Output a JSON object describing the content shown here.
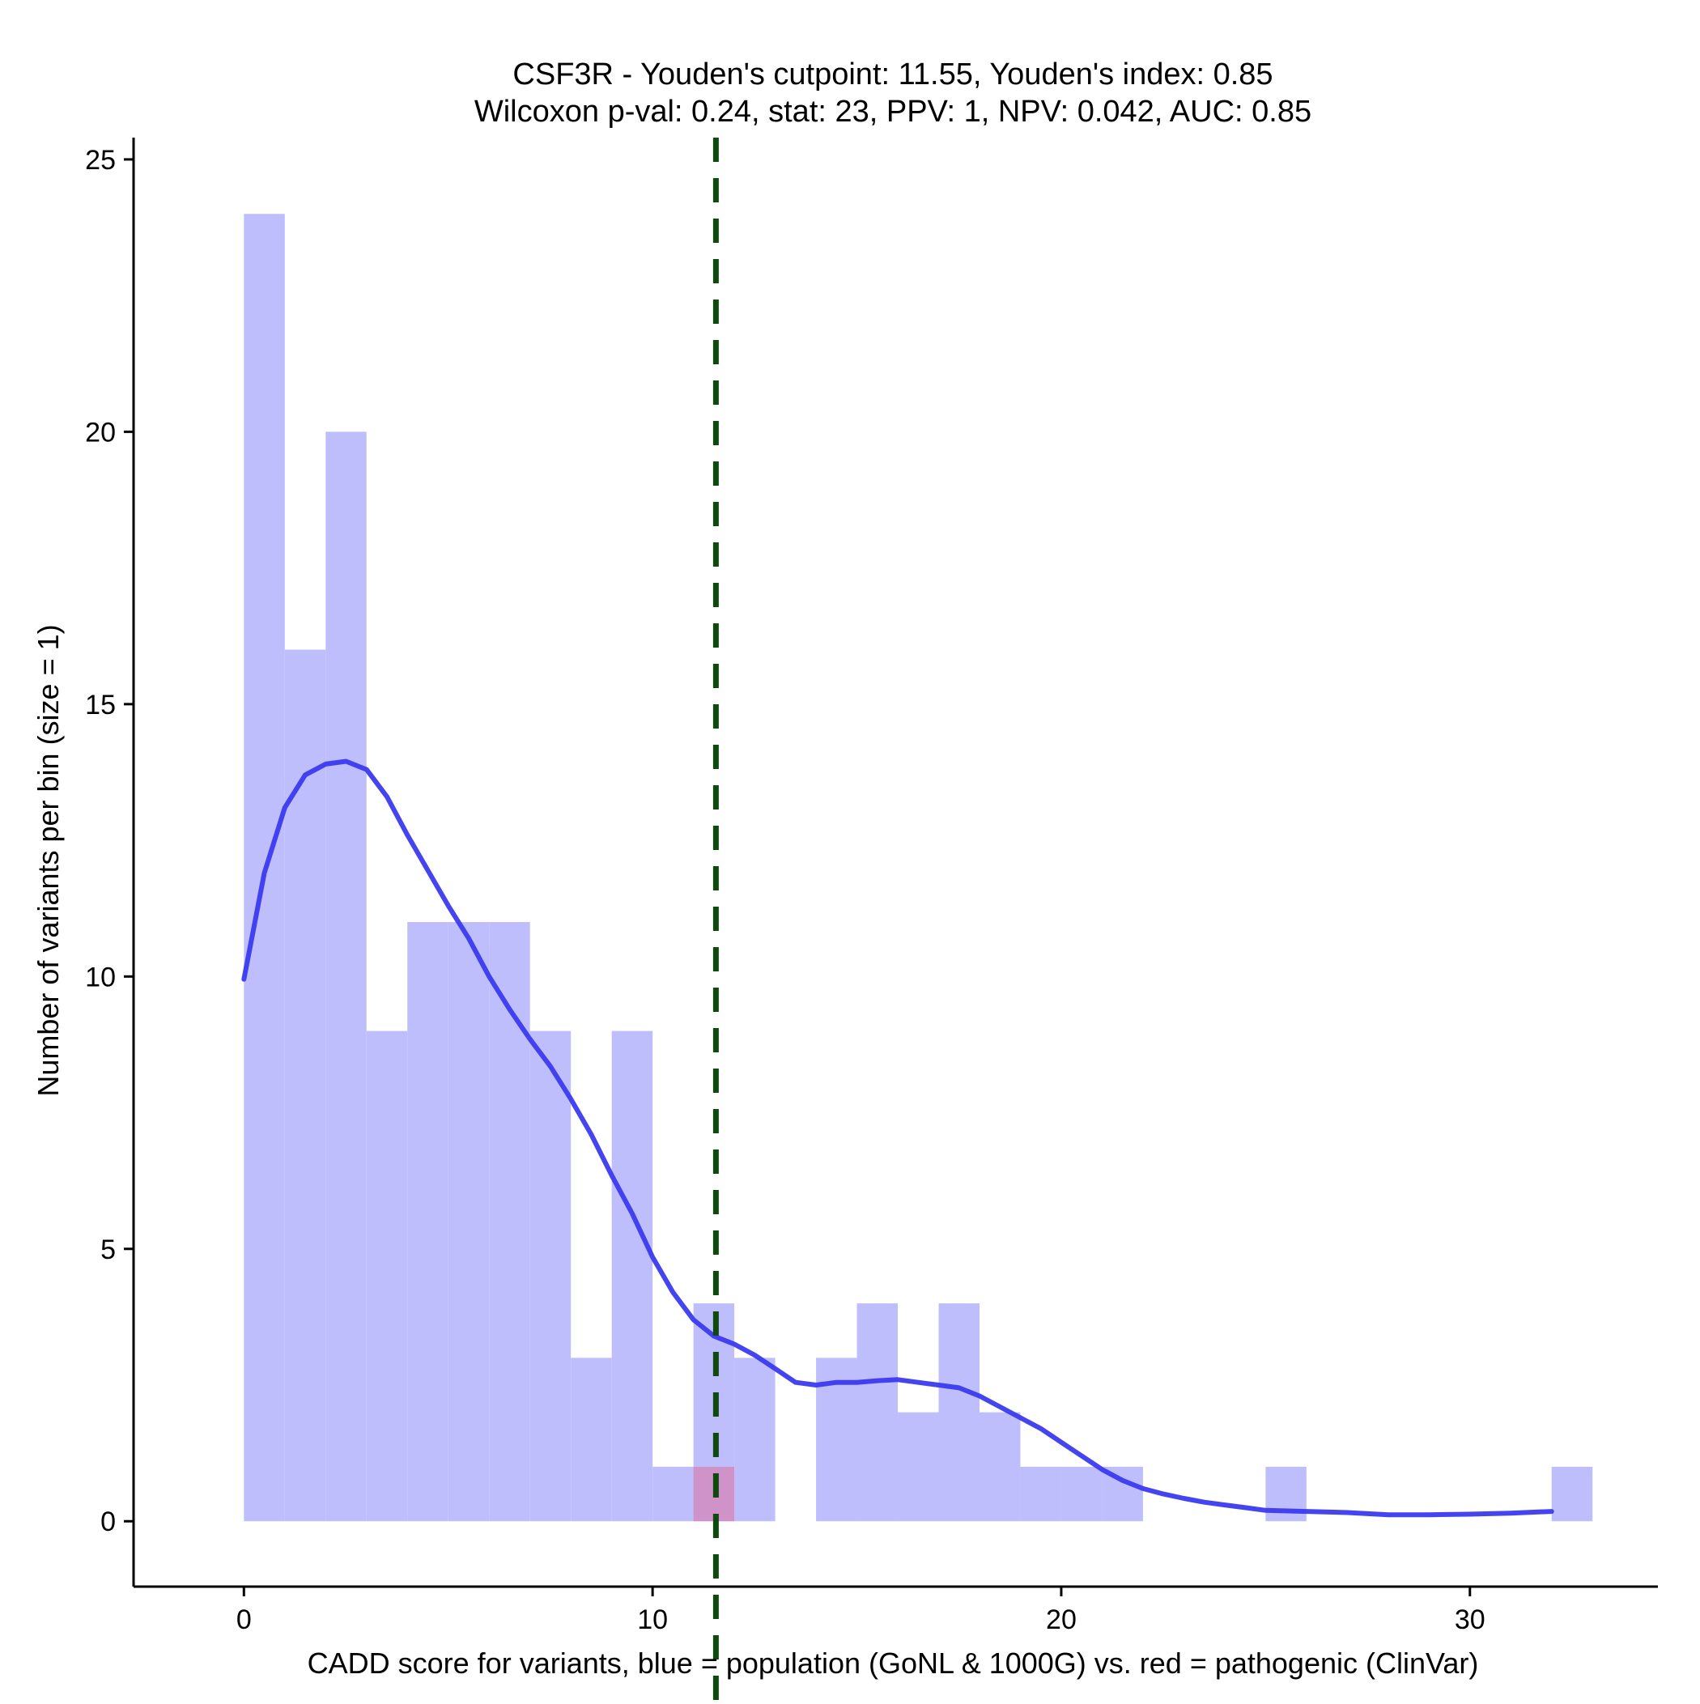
{
  "chart_data": {
    "type": "histogram",
    "title_line1": "CSF3R - Youden's cutpoint: 11.55, Youden's index: 0.85",
    "title_line2": "Wilcoxon p-val: 0.24, stat: 23, PPV: 1, NPV: 0.042, AUC: 0.85",
    "xlabel": "CADD score for variants, blue = population (GoNL & 1000G) vs. red = pathogenic (ClinVar)",
    "ylabel": "Number of variants per bin (size = 1)",
    "xlim": [
      -2.7,
      34.6
    ],
    "ylim": [
      -1.2,
      25.4
    ],
    "x_ticks": [
      0,
      10,
      20,
      30
    ],
    "y_ticks": [
      0,
      5,
      10,
      15,
      20,
      25
    ],
    "bin_size": 1,
    "cutpoint": 11.55,
    "colors": {
      "population": "#bebefc",
      "pathogenic": "#d48cbf",
      "density": "#3a3af0",
      "cutpoint": "#0e4a0e",
      "axis": "#000000"
    },
    "series": [
      {
        "name": "population",
        "bins": [
          {
            "x0": 0,
            "count": 24
          },
          {
            "x0": 1,
            "count": 16
          },
          {
            "x0": 2,
            "count": 20
          },
          {
            "x0": 3,
            "count": 9
          },
          {
            "x0": 4,
            "count": 11
          },
          {
            "x0": 5,
            "count": 11
          },
          {
            "x0": 6,
            "count": 11
          },
          {
            "x0": 7,
            "count": 9
          },
          {
            "x0": 8,
            "count": 3
          },
          {
            "x0": 9,
            "count": 9
          },
          {
            "x0": 10,
            "count": 1
          },
          {
            "x0": 11,
            "count": 4
          },
          {
            "x0": 12,
            "count": 3
          },
          {
            "x0": 13,
            "count": 0
          },
          {
            "x0": 14,
            "count": 3
          },
          {
            "x0": 15,
            "count": 4
          },
          {
            "x0": 16,
            "count": 2
          },
          {
            "x0": 17,
            "count": 4
          },
          {
            "x0": 18,
            "count": 2
          },
          {
            "x0": 19,
            "count": 1
          },
          {
            "x0": 20,
            "count": 1
          },
          {
            "x0": 21,
            "count": 1
          },
          {
            "x0": 25,
            "count": 1
          },
          {
            "x0": 32,
            "count": 1
          }
        ]
      },
      {
        "name": "pathogenic",
        "bins": [
          {
            "x0": 11,
            "count": 1
          }
        ]
      }
    ],
    "density_curve": {
      "name": "population density (scaled)",
      "points": [
        [
          0.0,
          9.95
        ],
        [
          0.5,
          11.9
        ],
        [
          1.0,
          13.1
        ],
        [
          1.5,
          13.7
        ],
        [
          2.0,
          13.9
        ],
        [
          2.5,
          13.95
        ],
        [
          3.0,
          13.8
        ],
        [
          3.5,
          13.3
        ],
        [
          4.0,
          12.6
        ],
        [
          4.5,
          11.95
        ],
        [
          5.0,
          11.3
        ],
        [
          5.5,
          10.7
        ],
        [
          6.0,
          10.0
        ],
        [
          6.5,
          9.4
        ],
        [
          7.0,
          8.85
        ],
        [
          7.5,
          8.35
        ],
        [
          8.0,
          7.75
        ],
        [
          8.5,
          7.1
        ],
        [
          9.0,
          6.35
        ],
        [
          9.5,
          5.65
        ],
        [
          10.0,
          4.85
        ],
        [
          10.5,
          4.2
        ],
        [
          11.0,
          3.7
        ],
        [
          11.5,
          3.4
        ],
        [
          12.0,
          3.25
        ],
        [
          12.5,
          3.05
        ],
        [
          13.0,
          2.8
        ],
        [
          13.5,
          2.55
        ],
        [
          14.0,
          2.5
        ],
        [
          14.5,
          2.55
        ],
        [
          15.0,
          2.55
        ],
        [
          15.5,
          2.58
        ],
        [
          16.0,
          2.6
        ],
        [
          16.5,
          2.55
        ],
        [
          17.0,
          2.5
        ],
        [
          17.5,
          2.45
        ],
        [
          18.0,
          2.3
        ],
        [
          18.5,
          2.1
        ],
        [
          19.0,
          1.9
        ],
        [
          19.5,
          1.7
        ],
        [
          20.0,
          1.45
        ],
        [
          20.5,
          1.2
        ],
        [
          21.0,
          0.95
        ],
        [
          21.5,
          0.75
        ],
        [
          22.0,
          0.6
        ],
        [
          22.5,
          0.5
        ],
        [
          23.0,
          0.42
        ],
        [
          23.5,
          0.35
        ],
        [
          24.0,
          0.3
        ],
        [
          24.5,
          0.25
        ],
        [
          25.0,
          0.2
        ],
        [
          26.0,
          0.18
        ],
        [
          27.0,
          0.16
        ],
        [
          28.0,
          0.12
        ],
        [
          29.0,
          0.12
        ],
        [
          30.0,
          0.13
        ],
        [
          31.0,
          0.15
        ],
        [
          32.0,
          0.18
        ]
      ]
    }
  }
}
